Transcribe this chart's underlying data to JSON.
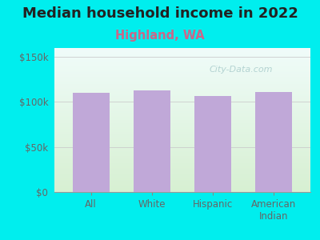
{
  "title": "Median household income in 2022",
  "subtitle": "Highland, WA",
  "categories": [
    "All",
    "White",
    "Hispanic",
    "American\nIndian"
  ],
  "values": [
    110000,
    113000,
    107000,
    111000
  ],
  "bar_color": "#c0a8d8",
  "background_outer": "#00EEEE",
  "plot_bg_top": "#e8f8f5",
  "plot_bg_bottom": "#d8f0e0",
  "title_color": "#222222",
  "subtitle_color": "#cc6688",
  "tick_label_color": "#666666",
  "yticks": [
    0,
    50000,
    100000,
    150000
  ],
  "ytick_labels": [
    "$0",
    "$50k",
    "$100k",
    "$150k"
  ],
  "ylim": [
    0,
    160000
  ],
  "watermark": "City-Data.com",
  "title_fontsize": 13,
  "subtitle_fontsize": 10.5
}
